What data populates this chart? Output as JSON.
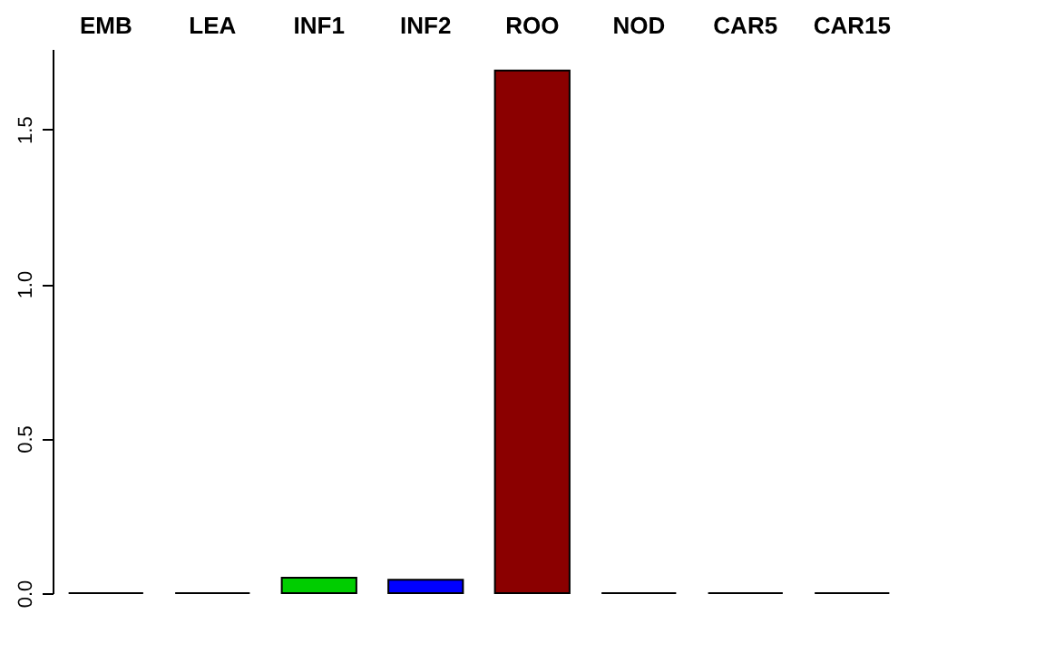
{
  "chart_data": {
    "type": "bar",
    "categories": [
      "EMB",
      "LEA",
      "INF1",
      "INF2",
      "ROO",
      "NOD",
      "CAR5",
      "CAR15"
    ],
    "values": [
      0,
      0,
      0.05,
      0.043,
      1.69,
      0,
      0,
      0
    ],
    "colors": [
      "#000000",
      "#000000",
      "#00cd00",
      "#0000ff",
      "#8b0000",
      "#000000",
      "#000000",
      "#000000"
    ],
    "ylim": [
      0,
      1.76
    ],
    "yticks": [
      {
        "value": 0,
        "label": "0.0"
      },
      {
        "value": 0.5,
        "label": "0.5"
      },
      {
        "value": 1,
        "label": "1.0"
      },
      {
        "value": 1.5,
        "label": "1.5"
      }
    ],
    "grid": false
  }
}
